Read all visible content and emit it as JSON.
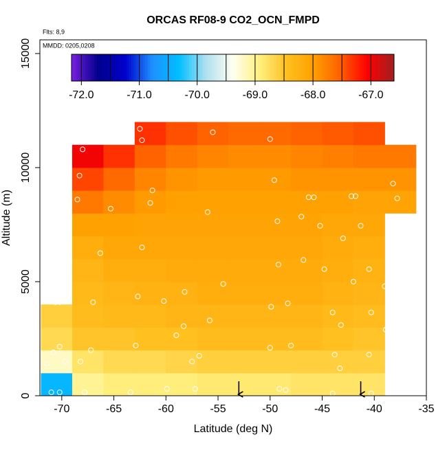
{
  "chart_data": {
    "type": "heatmap",
    "title": "ORCAS RF08-9 CO2_OCN_FMPD",
    "notes": [
      "Flts: 8,9",
      "MMDD: 0205,0208"
    ],
    "xlabel": "Latitude (deg N)",
    "ylabel": "Altitude (m)",
    "xlim": [
      -72.1,
      -35
    ],
    "ylim": [
      0,
      15600
    ],
    "xticks": [
      -70,
      -65,
      -60,
      -55,
      -50,
      -45,
      -40,
      -35
    ],
    "yticks": [
      0,
      5000,
      10000,
      15000
    ],
    "x": [
      -70.5,
      -67.5,
      -64.5,
      -61.5,
      -58.5,
      -55.5,
      -52.5,
      -49.5,
      -46.5,
      -43.5,
      -40.5,
      -37.5
    ],
    "y": [
      500,
      1500,
      2500,
      3500,
      4500,
      5500,
      6500,
      7500,
      8500,
      9500,
      10500,
      11500
    ],
    "z": [
      [
        -70.4,
        -69.0,
        -68.9,
        -68.9,
        -68.9,
        -68.85,
        -68.85,
        -68.85,
        -68.8,
        -68.8,
        -68.8,
        null
      ],
      [
        -69.2,
        -68.8,
        -68.7,
        -68.7,
        -68.65,
        -68.6,
        -68.6,
        -68.6,
        -68.6,
        -68.6,
        -68.6,
        null
      ],
      [
        -68.7,
        -68.5,
        -68.5,
        -68.45,
        -68.45,
        -68.4,
        -68.4,
        -68.4,
        -68.4,
        -68.45,
        -68.5,
        null
      ],
      [
        -68.6,
        -68.4,
        -68.35,
        -68.35,
        -68.3,
        -68.3,
        -68.3,
        -68.3,
        -68.3,
        -68.35,
        -68.4,
        null
      ],
      [
        null,
        -68.35,
        -68.3,
        -68.25,
        -68.25,
        -68.2,
        -68.2,
        -68.2,
        -68.2,
        -68.25,
        -68.3,
        null
      ],
      [
        null,
        -68.3,
        -68.2,
        -68.2,
        -68.15,
        -68.15,
        -68.15,
        -68.15,
        -68.15,
        -68.2,
        -68.25,
        null
      ],
      [
        null,
        -68.2,
        -68.1,
        -68.1,
        -68.1,
        -68.1,
        -68.1,
        -68.1,
        -68.1,
        -68.15,
        -68.2,
        null
      ],
      [
        null,
        -68.0,
        -68.0,
        -68.05,
        -68.05,
        -68.05,
        -68.05,
        -68.05,
        -68.05,
        -68.1,
        -68.1,
        null
      ],
      [
        null,
        -67.7,
        -67.85,
        -67.95,
        -68.0,
        -68.0,
        -68.0,
        -68.0,
        -68.0,
        -68.0,
        -68.05,
        -68.05
      ],
      [
        null,
        -67.4,
        -67.6,
        -67.8,
        -67.9,
        -67.95,
        -67.95,
        -67.95,
        -67.9,
        -67.9,
        -67.9,
        -67.9
      ],
      [
        null,
        -67.0,
        -67.3,
        -67.55,
        -67.7,
        -67.8,
        -67.85,
        -67.85,
        -67.8,
        -67.75,
        -67.7,
        -67.7
      ],
      [
        null,
        null,
        null,
        -67.3,
        -67.45,
        -67.55,
        -67.6,
        -67.6,
        -67.55,
        -67.5,
        -67.45,
        null
      ]
    ],
    "zlim": [
      -72.17,
      -66.6
    ],
    "zticks": [
      {
        "value": -72,
        "label": "-72.0"
      },
      {
        "value": -71,
        "label": "-71.0"
      },
      {
        "value": -70,
        "label": "-70.0"
      },
      {
        "value": -69,
        "label": "-69.0"
      },
      {
        "value": -68,
        "label": "-68.0"
      },
      {
        "value": -67,
        "label": "-67.0"
      }
    ],
    "colors": [
      "#7a1fe0",
      "#00008b",
      "#0000cd",
      "#1e90ff",
      "#00bfff",
      "#b0e0f0",
      "#fffff0",
      "#fff080",
      "#ffc020",
      "#ffa000",
      "#ff6000",
      "#ff0000",
      "#a02020"
    ],
    "samples": {
      "x": [
        -68,
        -68.3,
        -68.5,
        -65.3,
        -62.5,
        -62.3,
        -61.3,
        -61.5,
        -62.3,
        -66.3,
        -55.5,
        -50,
        -49.6,
        -46.3,
        -45.8,
        -42.2,
        -41.8,
        -41.3,
        -47,
        -45.2,
        -49.3,
        -56,
        -43,
        -38.5,
        -40.5,
        -44.8,
        -46.8,
        -49.2,
        -42,
        -54.5,
        -58.2,
        -60.2,
        -62.7,
        -67,
        -70.2,
        -70.6,
        -48.3,
        -49.9,
        -44,
        -40.3,
        -38.9,
        -43.2,
        -58.3,
        -59,
        -55.8,
        -62.9,
        -48,
        -50,
        -67.2,
        -70.2,
        -70.8,
        -69.7,
        -68.2,
        -57.5,
        -56.8,
        -43.8,
        -40.5,
        -43.3,
        -59.9,
        -57.2,
        -49.1,
        -48.5,
        -44,
        -40.3,
        -63.4,
        -67.8,
        -70.2,
        -71,
        -71.4,
        -37.2,
        -38.2,
        -37.8,
        -39,
        -35
      ],
      "y": [
        10800,
        9650,
        8600,
        8200,
        11700,
        11200,
        9000,
        8450,
        6500,
        6250,
        11550,
        11250,
        9450,
        8700,
        8700,
        8750,
        8750,
        7450,
        7850,
        7450,
        7650,
        8050,
        6900,
        6700,
        5550,
        5550,
        5950,
        5750,
        5000,
        4900,
        4550,
        4150,
        4350,
        4100,
        4100,
        4100,
        4050,
        3900,
        3650,
        3650,
        2900,
        3100,
        3050,
        2650,
        3300,
        2200,
        2200,
        2100,
        2000,
        2150,
        1900,
        1500,
        1500,
        1500,
        1750,
        1800,
        1800,
        1200,
        300,
        300,
        300,
        250,
        100,
        100,
        150,
        150,
        150,
        150,
        1400,
        11300,
        9300,
        8650,
        4800,
        12650
      ]
    },
    "arrows_x": [
      -53,
      -41.3
    ]
  }
}
